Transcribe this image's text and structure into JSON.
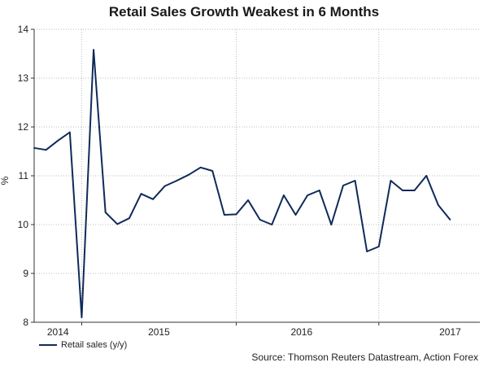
{
  "chart_data": {
    "type": "line",
    "title": "Retail Sales Growth Weakest in 6 Months",
    "ylabel": "%",
    "xlabel": "",
    "ylim": [
      8,
      14
    ],
    "yticks": [
      8,
      9,
      10,
      11,
      12,
      13,
      14
    ],
    "x_range": [
      0,
      37.5
    ],
    "x_ticks": [
      {
        "label": "2014",
        "pos": 2
      },
      {
        "label": "2015",
        "pos": 10.5
      },
      {
        "label": "2016",
        "pos": 22.5
      },
      {
        "label": "2017",
        "pos": 35
      }
    ],
    "gridlines_x": [
      4,
      17,
      29
    ],
    "series": [
      {
        "name": "Retail sales (y/y)",
        "color": "#0f2a5a",
        "values": [
          11.57,
          11.53,
          11.72,
          11.89,
          8.1,
          13.58,
          10.25,
          10.01,
          10.13,
          10.63,
          10.52,
          10.79,
          10.9,
          11.02,
          11.17,
          11.1,
          10.2,
          10.21,
          10.5,
          10.1,
          10.0,
          10.6,
          10.2,
          10.6,
          10.7,
          10.0,
          10.8,
          10.9,
          9.45,
          9.55,
          10.9,
          10.7,
          10.7,
          11.0,
          10.4,
          10.1
        ]
      }
    ],
    "legend": "bottom-left",
    "source": "Source: Thomson Reuters Datastream, Action Forex"
  },
  "colors": {
    "axis": "#333333",
    "grid": "#bbbbbb"
  }
}
